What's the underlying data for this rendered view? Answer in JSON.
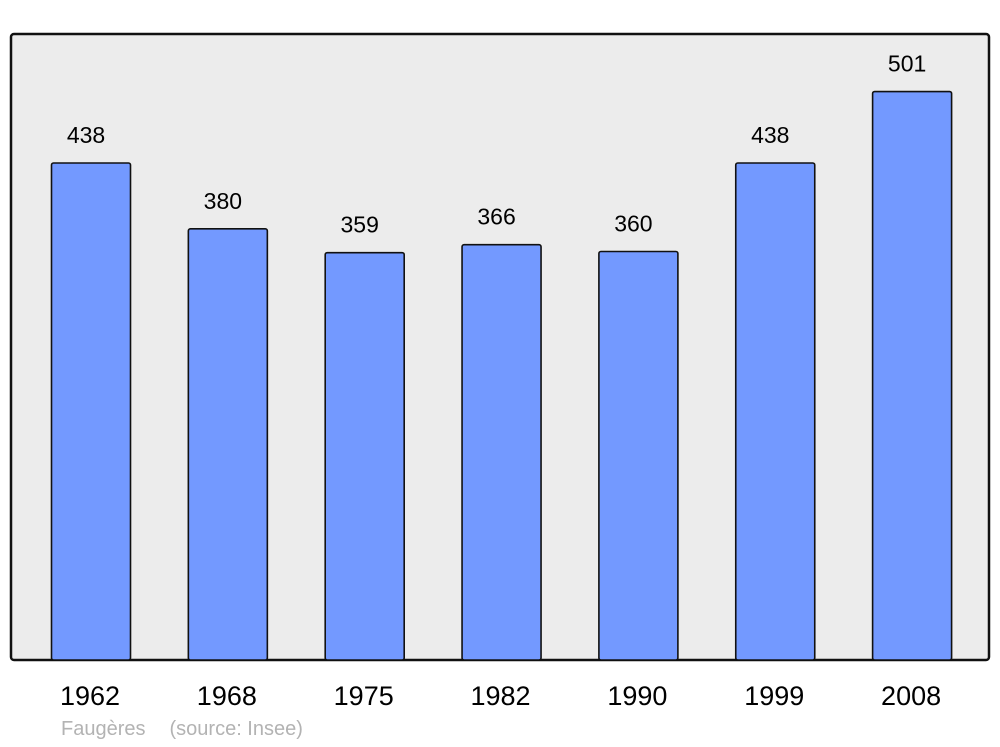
{
  "chart_data": {
    "type": "bar",
    "categories": [
      "1962",
      "1968",
      "1975",
      "1982",
      "1990",
      "1999",
      "2008"
    ],
    "values": [
      438,
      380,
      359,
      366,
      360,
      438,
      501
    ],
    "data_labels": [
      "438",
      "380",
      "359",
      "366",
      "360",
      "438",
      "501"
    ],
    "title": "",
    "xlabel": "",
    "ylabel": "",
    "ylim": [
      0,
      552
    ],
    "grid": false,
    "bar_color": "#7399ff",
    "plot_background": "#ececec"
  },
  "footer": {
    "place": "Faugères",
    "source": "(source: Insee)"
  }
}
